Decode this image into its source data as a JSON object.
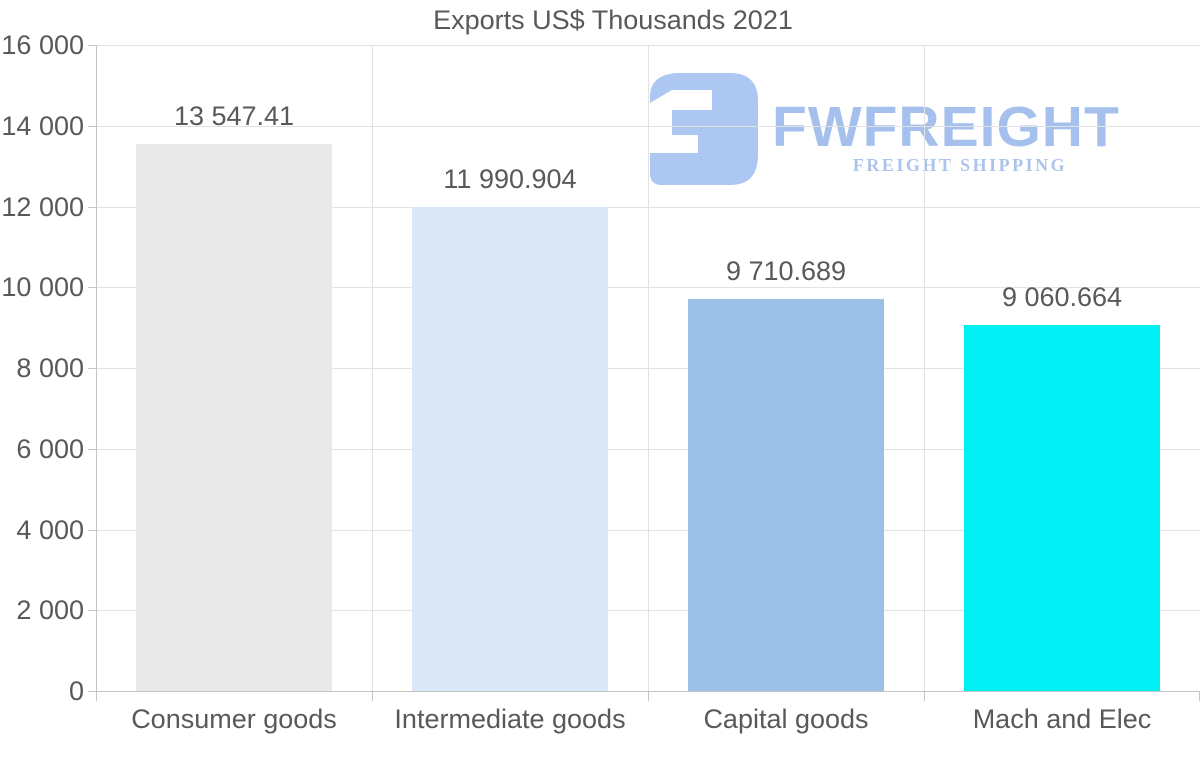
{
  "title": "Exports US$ Thousands 2021",
  "logo": {
    "brand": "FWFREIGHT",
    "tagline": "FREIGHT SHIPPING",
    "mark_color": "#acc7f1",
    "brand_color": "#a5c0ec",
    "tagline_color": "#aac4ee"
  },
  "chart_data": {
    "type": "bar",
    "title": "Exports US$ Thousands 2021",
    "categories": [
      "Consumer goods",
      "Intermediate goods",
      "Capital goods",
      "Mach and Elec"
    ],
    "values": [
      13547.41,
      11990.904,
      9710.689,
      9060.664
    ],
    "value_labels": [
      "13 547.41",
      "11 990.904",
      "9 710.689",
      "9 060.664"
    ],
    "bar_colors": [
      "#e9e9e9",
      "#d9e7f6",
      "#9bc2e6",
      "#00f0f5"
    ],
    "ylim": [
      0,
      16000
    ],
    "ytick_step": 2000,
    "ytick_labels": [
      "0",
      "2 000",
      "4 000",
      "6 000",
      "8 000",
      "10 000",
      "12 000",
      "14 000",
      "16 000"
    ],
    "xlabel": "",
    "ylabel": "",
    "grid": true,
    "legend": false,
    "text_color": "#595959",
    "grid_color": "#e2e2e2",
    "axis_color": "#c4c4c4"
  }
}
